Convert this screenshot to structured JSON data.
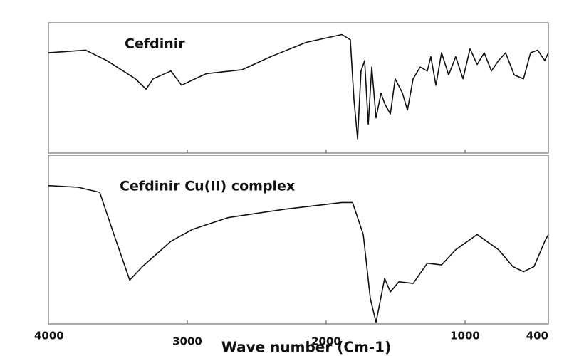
{
  "chart_data": [
    {
      "type": "line",
      "title": "Cefdinir",
      "color": "#111111",
      "xlim": [
        4000,
        400
      ],
      "ylim": [
        0,
        100
      ],
      "x": [
        4000,
        3733,
        3579,
        3374,
        3297,
        3246,
        3118,
        3041,
        2964,
        2862,
        2605,
        2400,
        2144,
        1887,
        1826,
        1800,
        1774,
        1749,
        1723,
        1697,
        1672,
        1641,
        1605,
        1579,
        1538,
        1503,
        1451,
        1415,
        1374,
        1323,
        1272,
        1246,
        1210,
        1169,
        1118,
        1067,
        1015,
        964,
        913,
        862,
        810,
        759,
        708,
        646,
        579,
        528,
        477,
        426,
        400
      ],
      "series": [
        {
          "values": [
            77,
            79,
            71,
            57,
            49,
            57,
            63,
            52,
            56,
            61,
            64,
            74,
            85,
            91,
            87,
            41,
            11,
            63,
            71,
            22,
            66,
            27,
            46,
            38,
            30,
            57,
            46,
            33,
            57,
            66,
            63,
            74,
            52,
            77,
            60,
            74,
            57,
            80,
            68,
            77,
            63,
            71,
            77,
            60,
            57,
            77,
            79,
            71,
            77
          ]
        }
      ]
    },
    {
      "type": "line",
      "title": "Cefdinir Cu(II) complex",
      "xlabel": "Wave number (Cm-1)",
      "color": "#111111",
      "xlim": [
        4000,
        400
      ],
      "ylim": [
        0,
        100
      ],
      "xticks": [
        4000,
        3000,
        2000,
        1000,
        400
      ],
      "x": [
        4000,
        3785,
        3631,
        3528,
        3415,
        3323,
        3118,
        2964,
        2708,
        2297,
        1887,
        1810,
        1733,
        1682,
        1641,
        1579,
        1538,
        1477,
        1374,
        1272,
        1169,
        1067,
        913,
        759,
        656,
        579,
        503,
        426,
        400
      ],
      "series": [
        {
          "values": [
            82,
            81,
            78,
            53,
            26,
            34,
            49,
            56,
            63,
            68,
            72,
            72,
            53,
            15,
            1,
            27,
            19,
            25,
            24,
            36,
            35,
            44,
            53,
            44,
            34,
            31,
            34,
            49,
            53
          ]
        }
      ]
    }
  ]
}
